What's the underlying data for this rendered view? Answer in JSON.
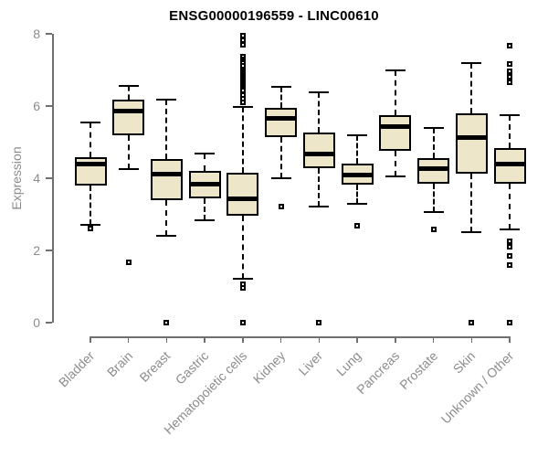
{
  "chart_data": {
    "type": "boxplot",
    "title": "ENSG00000196559 - LINC00610",
    "ylabel": "Expression",
    "xlabel": "",
    "ylim": [
      0,
      8
    ],
    "yticks": [
      0,
      2,
      4,
      6,
      8
    ],
    "grid": false,
    "legend": "none",
    "colors": {
      "box_fill": "#ede6c9",
      "box_border": "#000000",
      "median": "#000000",
      "axis": "#6f6f6f",
      "tick_text": "#8c8c8c",
      "title_text": "#000000",
      "background": "#ffffff"
    },
    "categories": [
      "Bladder",
      "Brain",
      "Breast",
      "Gastric",
      "Hematopoietic cells",
      "Kidney",
      "Liver",
      "Lung",
      "Pancreas",
      "Prostate",
      "Skin",
      "Unknown / Other"
    ],
    "series": [
      {
        "name": "Bladder",
        "whisker_low": 2.7,
        "q1": 3.8,
        "median": 4.38,
        "q3": 4.57,
        "whisker_high": 5.55,
        "outliers": [
          2.6
        ]
      },
      {
        "name": "Brain",
        "whisker_low": 4.25,
        "q1": 5.2,
        "median": 5.87,
        "q3": 6.18,
        "whisker_high": 6.55,
        "outliers": [
          1.67
        ]
      },
      {
        "name": "Breast",
        "whisker_low": 2.4,
        "q1": 3.4,
        "median": 4.12,
        "q3": 4.53,
        "whisker_high": 6.17,
        "outliers": [
          0
        ]
      },
      {
        "name": "Gastric",
        "whisker_low": 2.83,
        "q1": 3.45,
        "median": 3.83,
        "q3": 4.2,
        "whisker_high": 4.68,
        "outliers": []
      },
      {
        "name": "Hematopoietic cells",
        "whisker_low": 1.22,
        "q1": 2.97,
        "median": 3.43,
        "q3": 4.15,
        "whisker_high": 5.97,
        "outliers": [
          7.95,
          7.82,
          7.7,
          7.36,
          7.3,
          7.24,
          7.18,
          7.12,
          6.98,
          6.93,
          6.88,
          6.83,
          6.78,
          6.73,
          6.68,
          6.63,
          6.58,
          6.53,
          6.48,
          6.43,
          6.3,
          6.2,
          6.1,
          1.07,
          0.95,
          0
        ]
      },
      {
        "name": "Kidney",
        "whisker_low": 4.0,
        "q1": 5.14,
        "median": 5.67,
        "q3": 5.96,
        "whisker_high": 6.52,
        "outliers": [
          3.22
        ]
      },
      {
        "name": "Liver",
        "whisker_low": 3.22,
        "q1": 4.27,
        "median": 4.68,
        "q3": 5.27,
        "whisker_high": 6.38,
        "outliers": [
          0
        ]
      },
      {
        "name": "Lung",
        "whisker_low": 3.28,
        "q1": 3.83,
        "median": 4.1,
        "q3": 4.4,
        "whisker_high": 5.2,
        "outliers": [
          2.69
        ]
      },
      {
        "name": "Pancreas",
        "whisker_low": 4.04,
        "q1": 4.76,
        "median": 5.42,
        "q3": 5.75,
        "whisker_high": 7.0,
        "outliers": []
      },
      {
        "name": "Prostate",
        "whisker_low": 3.07,
        "q1": 3.85,
        "median": 4.27,
        "q3": 4.56,
        "whisker_high": 5.39,
        "outliers": [
          2.58
        ]
      },
      {
        "name": "Skin",
        "whisker_low": 2.51,
        "q1": 4.13,
        "median": 5.12,
        "q3": 5.79,
        "whisker_high": 7.2,
        "outliers": [
          0
        ]
      },
      {
        "name": "Unknown / Other",
        "whisker_low": 2.58,
        "q1": 3.85,
        "median": 4.38,
        "q3": 4.84,
        "whisker_high": 5.75,
        "outliers": [
          7.67,
          7.16,
          6.95,
          6.8,
          6.66,
          2.25,
          2.1,
          1.85,
          1.59,
          0
        ]
      }
    ]
  }
}
